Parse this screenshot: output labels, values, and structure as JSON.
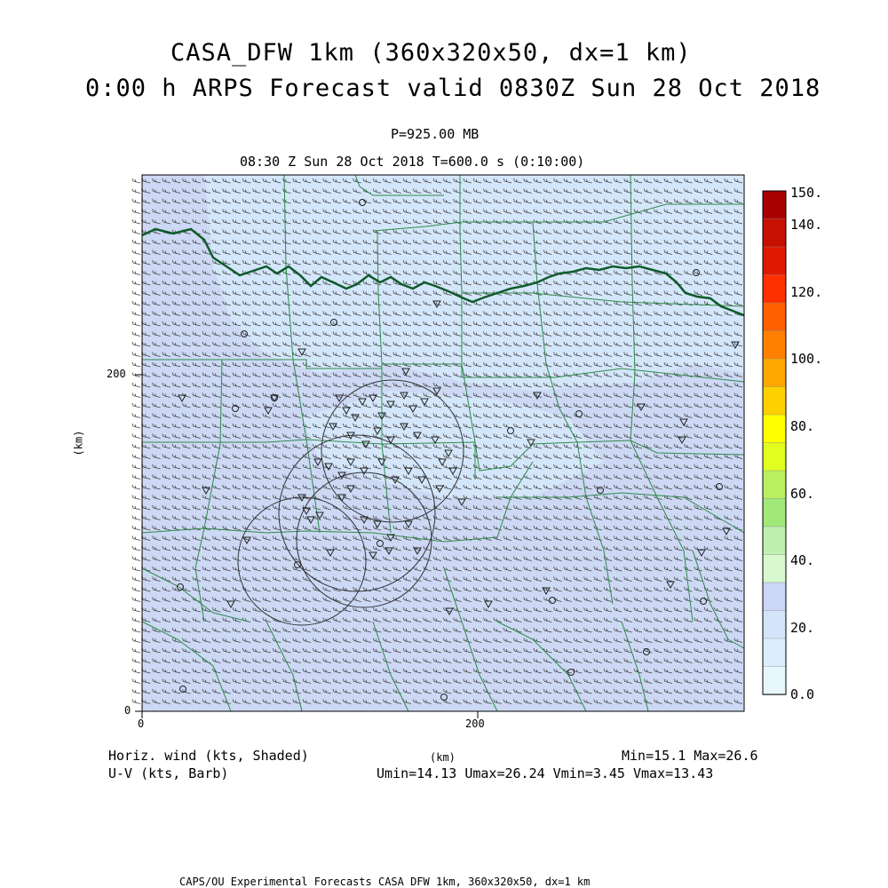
{
  "header": {
    "title_line1": "CASA_DFW 1km (360x320x50, dx=1 km)",
    "title_line2": "0:00 h ARPS Forecast valid 0830Z Sun 28 Oct 2018",
    "level": "P=925.00 MB",
    "time": "08:30 Z Sun 28 Oct 2018   T=600.0 s (0:10:00)"
  },
  "axes": {
    "x_label": "(km)",
    "y_label": "(km)",
    "x_ticks": [
      "0",
      "200"
    ],
    "y_ticks": [
      "0",
      "200"
    ]
  },
  "colorbar": {
    "labels": [
      "150.",
      "140.",
      "120.",
      "100.",
      "80.",
      "60.",
      "40.",
      "20.",
      "0.0"
    ],
    "colors": [
      "#a80000",
      "#c81000",
      "#e01800",
      "#ff3000",
      "#ff6000",
      "#ff8000",
      "#ffa800",
      "#ffd000",
      "#ffff00",
      "#e0ff20",
      "#b8f060",
      "#a0e878",
      "#c0f0b0",
      "#d8f8d0",
      "#ccd6f6",
      "#d4e4fa",
      "#dceefc",
      "#e8f6fe"
    ]
  },
  "footer": {
    "var1": "Horiz. wind (kts, Shaded)",
    "var2": "U-V (kts, Barb)",
    "minmax": "Min=15.1 Max=26.6",
    "uv_minmax": "Umin=14.13 Umax=26.24 Vmin=3.45 Vmax=13.43",
    "credits": "CAPS/OU Experimental Forecasts  CASA DFW 1km, 360x320x50, dx=1 km"
  },
  "colors": {
    "field": "#ccd8f4",
    "field_light": "#d4e6fa",
    "county": "#2e8a4a",
    "river": "#0f5a2a"
  }
}
